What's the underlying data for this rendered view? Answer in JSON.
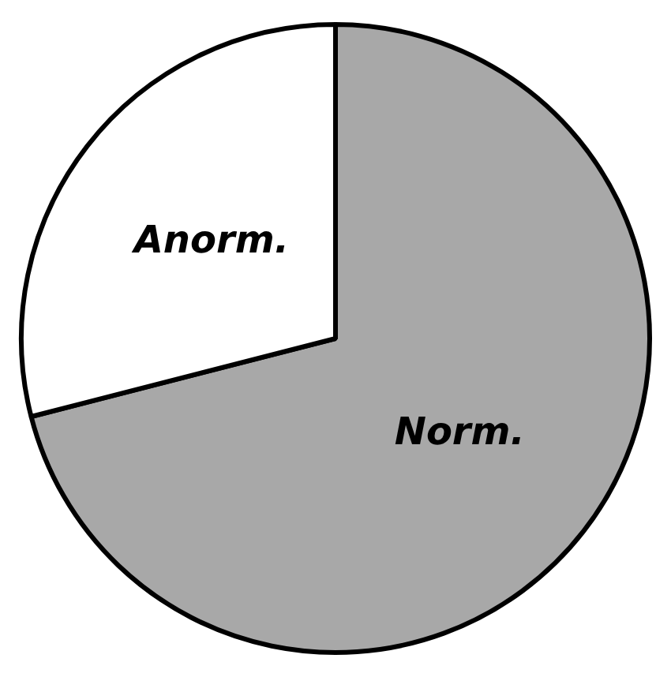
{
  "chart_data": {
    "type": "pie",
    "categories": [
      "Norm.",
      "Anorm."
    ],
    "values": [
      71,
      29
    ],
    "colors": [
      "#a8a8a8",
      "#ffffff"
    ],
    "legend": false
  }
}
